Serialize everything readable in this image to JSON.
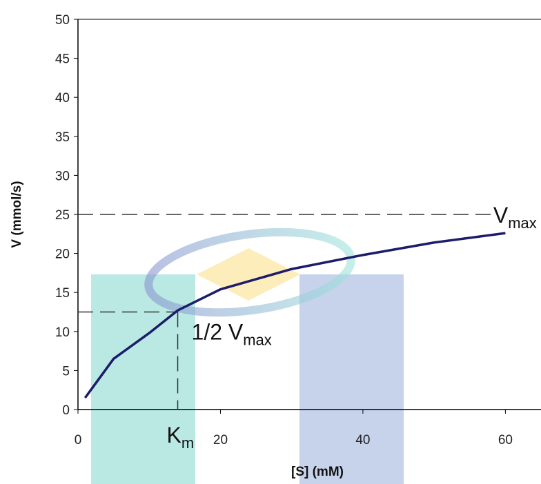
{
  "chart_data": {
    "type": "line",
    "x_label": "[S] (mM)",
    "y_label": "V (mmol/s)",
    "x": [
      1,
      5,
      10,
      14,
      20,
      30,
      40,
      50,
      60
    ],
    "series": [
      {
        "color": "#1c1c6b",
        "values": [
          1.5,
          6.5,
          9.8,
          12.7,
          15.4,
          18,
          19.8,
          21.4,
          22.6
        ]
      }
    ],
    "xlim": [
      0,
      65
    ],
    "ylim": [
      0,
      50
    ],
    "xticks": [
      0,
      20,
      40,
      60
    ],
    "yticks": [
      0,
      5,
      10,
      15,
      20,
      25,
      30,
      35,
      40,
      45,
      50
    ],
    "reference": {
      "vmax": 25,
      "half_vmax": 12.5,
      "km": 14
    },
    "annotations": [
      {
        "text": "V",
        "sub": "max"
      },
      {
        "text": "1/2 V",
        "sub": "max"
      },
      {
        "text": "K",
        "sub": "m"
      }
    ]
  }
}
